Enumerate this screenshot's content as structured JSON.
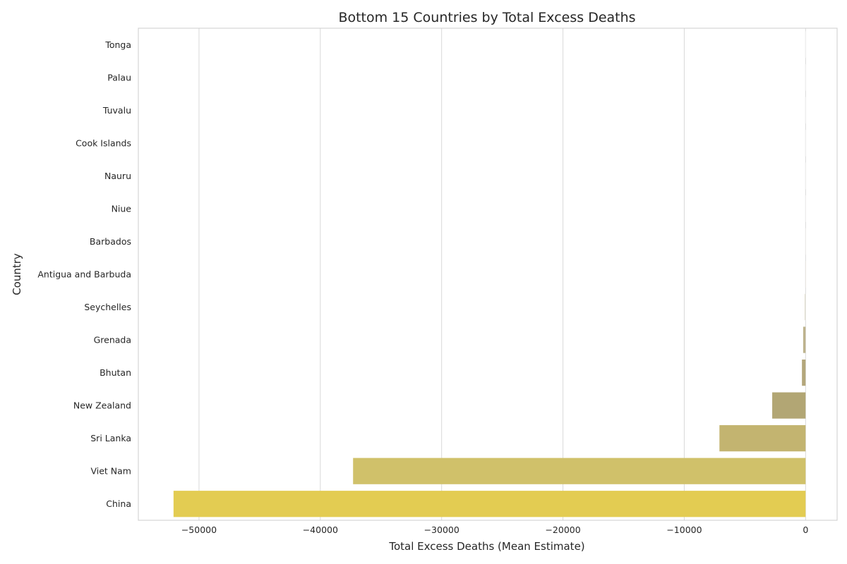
{
  "chart_data": {
    "type": "bar",
    "orientation": "horizontal",
    "title": "Bottom 15 Countries by Total Excess Deaths",
    "xlabel": "Total Excess Deaths (Mean Estimate)",
    "ylabel": "Country",
    "xlim": [
      -55000,
      2600
    ],
    "xticks": [
      -50000,
      -40000,
      -30000,
      -20000,
      -10000,
      0
    ],
    "xtick_labels": [
      "−50000",
      "−40000",
      "−30000",
      "−20000",
      "−10000",
      "0"
    ],
    "grid": "vertical",
    "categories": [
      "Tonga",
      "Palau",
      "Tuvalu",
      "Cook Islands",
      "Nauru",
      "Niue",
      "Barbados",
      "Antigua and Barbuda",
      "Seychelles",
      "Grenada",
      "Bhutan",
      "New Zealand",
      "Sri Lanka",
      "Viet Nam",
      "China"
    ],
    "values": [
      -2,
      -3,
      -4,
      -6,
      -7,
      -9,
      -12,
      -20,
      -60,
      -200,
      -300,
      -2750,
      -7100,
      -37300,
      -52100
    ],
    "palette": "white-to-gold gradient",
    "colors": [
      "#ffffff",
      "#fdfcfa",
      "#fbf9f5",
      "#f8f5ef",
      "#f4efe6",
      "#eee8db",
      "#e6dfcd",
      "#dbd3b9",
      "#ccc3a3",
      "#bdb38d",
      "#b4a77b",
      "#b2a674",
      "#c3b470",
      "#d0c16a",
      "#e3cc52"
    ]
  }
}
